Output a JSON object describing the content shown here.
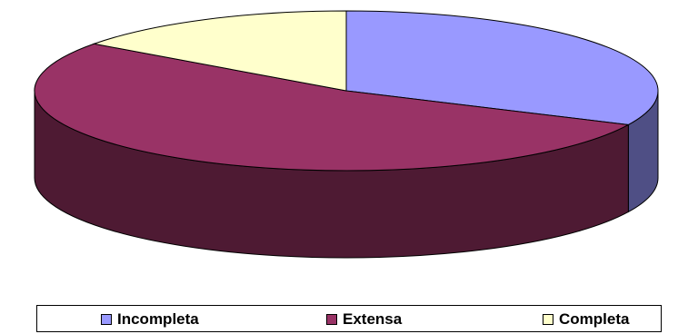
{
  "chart_data": {
    "type": "pie",
    "title": "",
    "categories": [
      "Incompleta",
      "Extensa",
      "Completa"
    ],
    "values": [
      32,
      53,
      15
    ],
    "colors": [
      "#9999ff",
      "#993366",
      "#ffffcc"
    ],
    "side_colors": [
      "#4f4f85",
      "#4e1a33",
      "#8a8a6a"
    ],
    "legend_position": "bottom",
    "three_d": true
  }
}
